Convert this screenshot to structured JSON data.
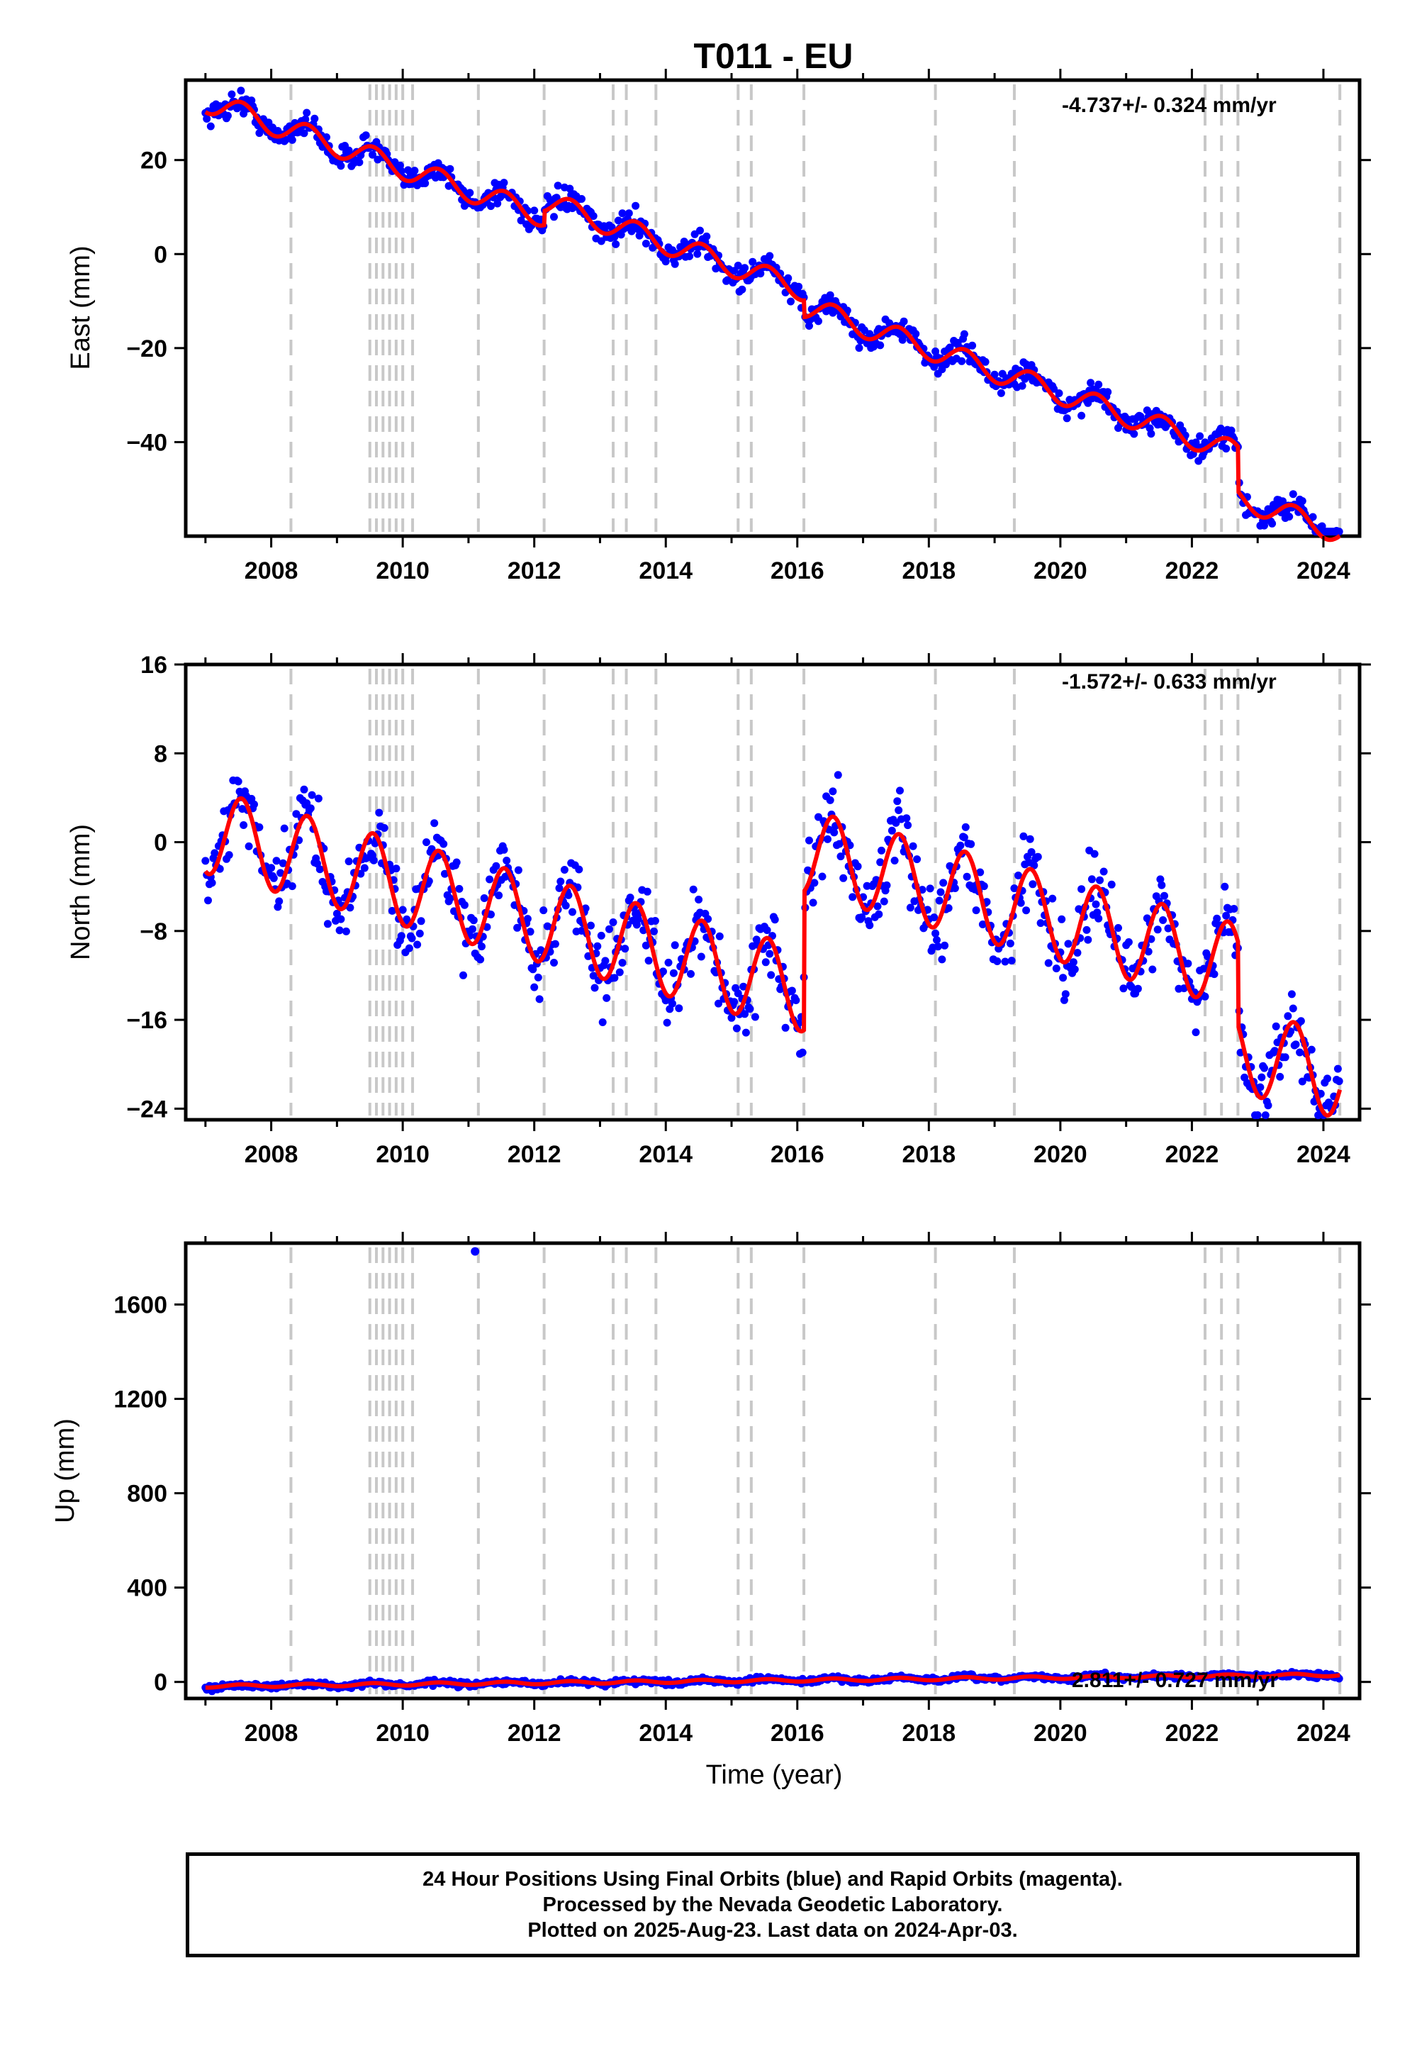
{
  "chart_data": [
    {
      "type": "scatter",
      "title": "T011 - EU",
      "ylabel": "East (mm)",
      "xlabel": "",
      "xlim": [
        2006.7,
        2024.55
      ],
      "ylim": [
        -60,
        37
      ],
      "xticks": [
        2008,
        2010,
        2012,
        2014,
        2016,
        2018,
        2020,
        2022,
        2024
      ],
      "yticks": [
        -40,
        -20,
        0,
        20
      ],
      "yticklabels": [
        "−40",
        "−20",
        "0",
        "20"
      ],
      "rate": "-4.737+/- 0.324 mm/yr",
      "series": [
        {
          "name": "observations",
          "color": "#0000ff"
        },
        {
          "name": "model",
          "color": "#ff0000"
        }
      ],
      "model": {
        "offset": 32.5,
        "start": 2007.0,
        "rate": -4.737,
        "seasonal_amp": 2.4,
        "steps": [
          [
            2008.3,
            0
          ],
          [
            2012.15,
            3
          ],
          [
            2016.1,
            -3.5
          ],
          [
            2022.7,
            -9.5
          ]
        ]
      }
    },
    {
      "type": "scatter",
      "title": "",
      "ylabel": "North (mm)",
      "xlabel": "",
      "xlim": [
        2006.7,
        2024.55
      ],
      "ylim": [
        -25,
        16
      ],
      "xticks": [
        2008,
        2010,
        2012,
        2014,
        2016,
        2018,
        2020,
        2022,
        2024
      ],
      "yticks": [
        -24,
        -16,
        -8,
        0,
        8,
        16
      ],
      "yticklabels": [
        "−24",
        "−16",
        "−8",
        "0",
        "8",
        "16"
      ],
      "rate": "-1.572+/- 0.633 mm/yr",
      "series": [
        {
          "name": "observations",
          "color": "#0000ff"
        },
        {
          "name": "model",
          "color": "#ff0000"
        }
      ],
      "model": {
        "offset": 1.0,
        "start": 2007.0,
        "rate": -1.572,
        "seasonal_amp": 3.8,
        "steps": [
          [
            2016.1,
            12.5
          ],
          [
            2022.7,
            -7.5
          ]
        ]
      }
    },
    {
      "type": "scatter",
      "title": "",
      "ylabel": "Up (mm)",
      "xlabel": "Time (year)",
      "xlim": [
        2006.7,
        2024.55
      ],
      "ylim": [
        -70,
        1860
      ],
      "xticks": [
        2008,
        2010,
        2012,
        2014,
        2016,
        2018,
        2020,
        2022,
        2024
      ],
      "yticks": [
        0,
        400,
        800,
        1200,
        1600
      ],
      "yticklabels": [
        "0",
        "400",
        "800",
        "1200",
        "1600"
      ],
      "rate": "2.811+/- 0.727 mm/yr",
      "outliers": [
        [
          2011.1,
          1825
        ]
      ],
      "series": [
        {
          "name": "observations",
          "color": "#0000ff"
        },
        {
          "name": "model",
          "color": "#ff0000"
        }
      ],
      "model": {
        "offset": -18,
        "start": 2007.0,
        "rate": 2.811,
        "seasonal_amp": 6,
        "steps": []
      }
    }
  ],
  "offset_epochs": [
    2008.3,
    2009.5,
    2009.6,
    2009.7,
    2009.8,
    2009.9,
    2010.0,
    2010.15,
    2011.15,
    2012.15,
    2013.2,
    2013.4,
    2013.85,
    2015.1,
    2015.3,
    2016.1,
    2018.1,
    2019.3,
    2022.2,
    2022.45,
    2022.7,
    2024.25
  ],
  "colors": {
    "observations": "#0000ff",
    "model": "#ff0000",
    "offset_lines": "#c8c8c8",
    "axes": "#000000"
  },
  "footer": {
    "line1": "24 Hour Positions Using Final Orbits (blue) and Rapid Orbits (magenta).",
    "line2": "Processed by the Nevada Geodetic Laboratory.",
    "line3": "Plotted on 2025-Aug-23. Last data on 2024-Apr-03."
  }
}
